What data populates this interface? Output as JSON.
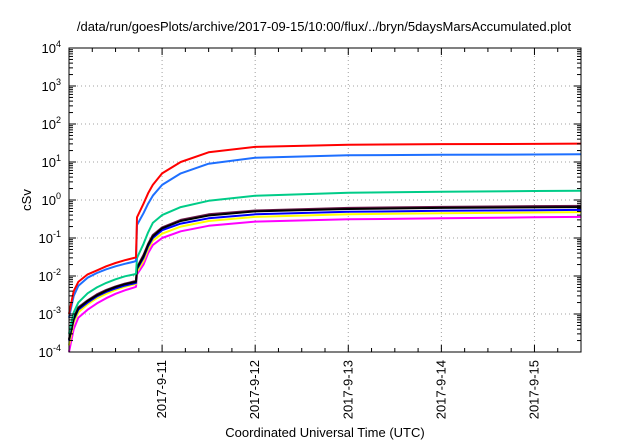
{
  "chart_data": {
    "type": "line",
    "title": "/data/run/goesPlots/archive/2017-09-15/10:00/flux/../bryn/5daysMarsAccumulated.plot",
    "xlabel": "Coordinated Universal Time (UTC)",
    "ylabel": "cSv",
    "y_scale": "log",
    "ylim": [
      0.0001,
      10000
    ],
    "xlim": [
      0,
      5.5
    ],
    "x_ticks": [
      {
        "x": 1,
        "label": "2017-9-11"
      },
      {
        "x": 2,
        "label": "2017-9-12"
      },
      {
        "x": 3,
        "label": "2017-9-13"
      },
      {
        "x": 4,
        "label": "2017-9-14"
      },
      {
        "x": 5,
        "label": "2017-9-15"
      }
    ],
    "y_ticks": [
      {
        "value": 0.0001,
        "base": "10",
        "exp": "-4"
      },
      {
        "value": 0.001,
        "base": "10",
        "exp": "-3"
      },
      {
        "value": 0.01,
        "base": "10",
        "exp": "-2"
      },
      {
        "value": 0.1,
        "base": "10",
        "exp": "-1"
      },
      {
        "value": 1,
        "base": "10",
        "exp": "0"
      },
      {
        "value": 10,
        "base": "10",
        "exp": "1"
      },
      {
        "value": 100,
        "base": "10",
        "exp": "2"
      },
      {
        "value": 1000,
        "base": "10",
        "exp": "3"
      },
      {
        "value": 10000,
        "base": "10",
        "exp": "4"
      }
    ],
    "grid": true,
    "series": [
      {
        "color": "#ff00ff",
        "x": [
          0,
          0.05,
          0.1,
          0.2,
          0.3,
          0.4,
          0.5,
          0.6,
          0.7,
          0.72,
          0.73,
          0.8,
          0.85,
          0.9,
          1.0,
          1.2,
          1.5,
          2.0,
          3.0,
          4.0,
          5.0,
          5.5
        ],
        "y": [
          0.0001,
          0.0004,
          0.0008,
          0.0013,
          0.0019,
          0.0026,
          0.0034,
          0.0042,
          0.005,
          0.0052,
          0.011,
          0.02,
          0.04,
          0.065,
          0.1,
          0.15,
          0.21,
          0.27,
          0.31,
          0.33,
          0.35,
          0.36
        ]
      },
      {
        "color": "#ffff00",
        "x": [
          0,
          0.05,
          0.1,
          0.2,
          0.3,
          0.4,
          0.5,
          0.6,
          0.7,
          0.72,
          0.73,
          0.8,
          0.85,
          0.9,
          1.0,
          1.2,
          1.5,
          2.0,
          3.0,
          4.0,
          5.0,
          5.5
        ],
        "y": [
          0.00015,
          0.0006,
          0.0011,
          0.0018,
          0.0026,
          0.0034,
          0.0043,
          0.0052,
          0.006,
          0.0062,
          0.013,
          0.025,
          0.05,
          0.085,
          0.13,
          0.2,
          0.28,
          0.36,
          0.42,
          0.45,
          0.47,
          0.48
        ]
      },
      {
        "color": "#0000ff",
        "x": [
          0,
          0.05,
          0.1,
          0.2,
          0.3,
          0.4,
          0.5,
          0.6,
          0.7,
          0.72,
          0.73,
          0.8,
          0.85,
          0.9,
          1.0,
          1.2,
          1.5,
          2.0,
          3.0,
          4.0,
          5.0,
          5.5
        ],
        "y": [
          0.0002,
          0.0007,
          0.0013,
          0.002,
          0.0029,
          0.0038,
          0.0047,
          0.0056,
          0.0064,
          0.0066,
          0.015,
          0.03,
          0.06,
          0.1,
          0.16,
          0.24,
          0.33,
          0.42,
          0.49,
          0.52,
          0.54,
          0.55
        ]
      },
      {
        "color": "#6a1a4a",
        "x": [
          0,
          0.05,
          0.1,
          0.2,
          0.3,
          0.4,
          0.5,
          0.6,
          0.7,
          0.72,
          0.73,
          0.8,
          0.85,
          0.9,
          1.0,
          1.2,
          1.5,
          2.0,
          3.0,
          4.0,
          5.0,
          5.5
        ],
        "y": [
          0.00022,
          0.0008,
          0.0015,
          0.0023,
          0.0033,
          0.0043,
          0.0053,
          0.0063,
          0.0072,
          0.0074,
          0.017,
          0.036,
          0.07,
          0.12,
          0.19,
          0.3,
          0.42,
          0.53,
          0.62,
          0.66,
          0.69,
          0.7
        ]
      },
      {
        "color": "#000000",
        "x": [
          0,
          0.05,
          0.1,
          0.2,
          0.3,
          0.4,
          0.5,
          0.6,
          0.7,
          0.72,
          0.73,
          0.8,
          0.85,
          0.9,
          1.0,
          1.2,
          1.5,
          2.0,
          3.0,
          4.0,
          5.0,
          5.5
        ],
        "y": [
          0.00021,
          0.00075,
          0.0014,
          0.0022,
          0.0031,
          0.0041,
          0.0051,
          0.0061,
          0.0069,
          0.0071,
          0.016,
          0.033,
          0.066,
          0.11,
          0.18,
          0.28,
          0.39,
          0.5,
          0.58,
          0.62,
          0.64,
          0.65
        ]
      },
      {
        "color": "#00cc88",
        "x": [
          0,
          0.05,
          0.1,
          0.2,
          0.3,
          0.4,
          0.5,
          0.6,
          0.7,
          0.72,
          0.73,
          0.8,
          0.85,
          0.9,
          1.0,
          1.2,
          1.5,
          2.0,
          3.0,
          4.0,
          5.0,
          5.5
        ],
        "y": [
          0.0003,
          0.0011,
          0.002,
          0.0035,
          0.005,
          0.0066,
          0.0082,
          0.0098,
          0.011,
          0.0115,
          0.03,
          0.07,
          0.14,
          0.25,
          0.4,
          0.65,
          0.95,
          1.3,
          1.55,
          1.65,
          1.72,
          1.75
        ]
      },
      {
        "color": "#1e6fff",
        "x": [
          0,
          0.05,
          0.1,
          0.2,
          0.3,
          0.4,
          0.5,
          0.6,
          0.7,
          0.72,
          0.73,
          0.8,
          0.85,
          0.9,
          1.0,
          1.2,
          1.5,
          2.0,
          3.0,
          4.0,
          5.0,
          5.5
        ],
        "y": [
          0.0008,
          0.003,
          0.0055,
          0.009,
          0.012,
          0.015,
          0.018,
          0.021,
          0.024,
          0.025,
          0.22,
          0.45,
          0.8,
          1.3,
          2.5,
          5.0,
          9.0,
          13.0,
          15.0,
          15.5,
          15.8,
          16.0
        ]
      },
      {
        "color": "#ff0000",
        "x": [
          0,
          0.05,
          0.1,
          0.2,
          0.3,
          0.4,
          0.5,
          0.6,
          0.7,
          0.72,
          0.73,
          0.8,
          0.85,
          0.9,
          1.0,
          1.2,
          1.5,
          2.0,
          3.0,
          4.0,
          5.0,
          5.5
        ],
        "y": [
          0.001,
          0.004,
          0.007,
          0.011,
          0.014,
          0.018,
          0.022,
          0.026,
          0.03,
          0.031,
          0.35,
          0.8,
          1.5,
          2.5,
          5.0,
          10.0,
          18.0,
          25.0,
          28.5,
          29.5,
          30.0,
          30.5
        ]
      }
    ]
  }
}
